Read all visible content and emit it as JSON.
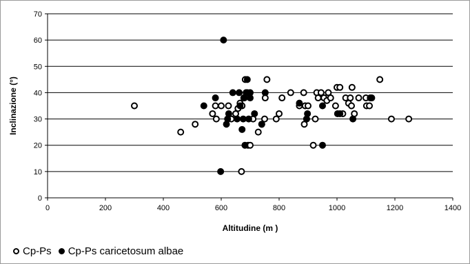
{
  "chart_data": {
    "type": "scatter",
    "xlabel": "Altitudine (m )",
    "ylabel": "Inclinazione (°)",
    "xlim": [
      0,
      1400
    ],
    "ylim": [
      0,
      70
    ],
    "xticks": [
      0,
      200,
      400,
      600,
      800,
      1000,
      1200,
      1400
    ],
    "yticks": [
      0,
      10,
      20,
      30,
      40,
      50,
      60,
      70
    ],
    "grid": "horizontal",
    "legend_placement": "bottom-left",
    "series": [
      {
        "name": "Cp-Ps",
        "marker": "open-circle",
        "color": "#000000",
        "points": [
          [
            300,
            35
          ],
          [
            460,
            25
          ],
          [
            510,
            28
          ],
          [
            570,
            32
          ],
          [
            580,
            35
          ],
          [
            583,
            30
          ],
          [
            600,
            35
          ],
          [
            625,
            35
          ],
          [
            635,
            30
          ],
          [
            650,
            32
          ],
          [
            658,
            34
          ],
          [
            665,
            36
          ],
          [
            670,
            10
          ],
          [
            672,
            35
          ],
          [
            680,
            38
          ],
          [
            683,
            45
          ],
          [
            690,
            40
          ],
          [
            693,
            20
          ],
          [
            700,
            20
          ],
          [
            710,
            30
          ],
          [
            728,
            25
          ],
          [
            740,
            28
          ],
          [
            750,
            30
          ],
          [
            752,
            38
          ],
          [
            758,
            45
          ],
          [
            790,
            30
          ],
          [
            800,
            32
          ],
          [
            810,
            38
          ],
          [
            840,
            40
          ],
          [
            870,
            35
          ],
          [
            885,
            40
          ],
          [
            887,
            28
          ],
          [
            890,
            35
          ],
          [
            895,
            30
          ],
          [
            900,
            35
          ],
          [
            918,
            20
          ],
          [
            925,
            30
          ],
          [
            930,
            40
          ],
          [
            935,
            38
          ],
          [
            945,
            40
          ],
          [
            955,
            38
          ],
          [
            965,
            37
          ],
          [
            970,
            40
          ],
          [
            978,
            38
          ],
          [
            995,
            35
          ],
          [
            1000,
            42
          ],
          [
            1010,
            42
          ],
          [
            1020,
            32
          ],
          [
            1030,
            38
          ],
          [
            1040,
            36
          ],
          [
            1046,
            38
          ],
          [
            1050,
            35
          ],
          [
            1052,
            42
          ],
          [
            1060,
            32
          ],
          [
            1075,
            38
          ],
          [
            1100,
            38
          ],
          [
            1102,
            35
          ],
          [
            1112,
            35
          ],
          [
            1148,
            45
          ],
          [
            1188,
            30
          ],
          [
            1248,
            30
          ]
        ]
      },
      {
        "name": "Cp-Ps caricetosum albae",
        "marker": "filled-circle",
        "color": "#000000",
        "points": [
          [
            540,
            35
          ],
          [
            580,
            38
          ],
          [
            598,
            10
          ],
          [
            608,
            60
          ],
          [
            618,
            28
          ],
          [
            622,
            30
          ],
          [
            626,
            32
          ],
          [
            640,
            40
          ],
          [
            655,
            30
          ],
          [
            662,
            40
          ],
          [
            665,
            35
          ],
          [
            672,
            26
          ],
          [
            676,
            30
          ],
          [
            678,
            38
          ],
          [
            682,
            20
          ],
          [
            686,
            40
          ],
          [
            690,
            45
          ],
          [
            695,
            30
          ],
          [
            700,
            40
          ],
          [
            700,
            38
          ],
          [
            715,
            32
          ],
          [
            740,
            28
          ],
          [
            752,
            40
          ],
          [
            870,
            36
          ],
          [
            895,
            30
          ],
          [
            898,
            32
          ],
          [
            950,
            35
          ],
          [
            950,
            20
          ],
          [
            1002,
            32
          ],
          [
            1010,
            32
          ],
          [
            1055,
            30
          ],
          [
            1115,
            38
          ],
          [
            1120,
            38
          ]
        ]
      }
    ]
  }
}
